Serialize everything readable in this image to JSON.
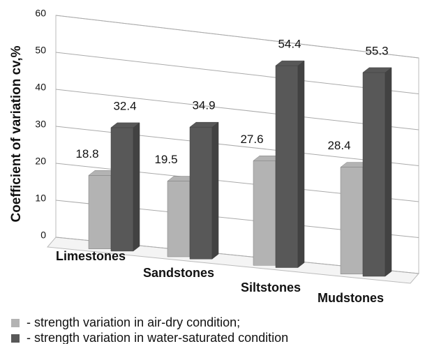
{
  "chart_data": {
    "type": "bar3d",
    "y_label": "Coefficient of variation cv,%",
    "categories": [
      "Limestones",
      "Sandstones",
      "Siltstones",
      "Mudstones"
    ],
    "series": [
      {
        "name": "- strength variation in air-dry condition;",
        "color": "#b3b3b3",
        "values": [
          18.8,
          19.5,
          27.6,
          28.4
        ]
      },
      {
        "name": "- strength variation in water-saturated condition",
        "color": "#585858",
        "values": [
          32.4,
          34.9,
          54.4,
          55.3
        ]
      }
    ],
    "ylim": [
      0,
      60
    ],
    "yticks": [
      0,
      10,
      20,
      30,
      40,
      50,
      60
    ],
    "grid": true
  }
}
